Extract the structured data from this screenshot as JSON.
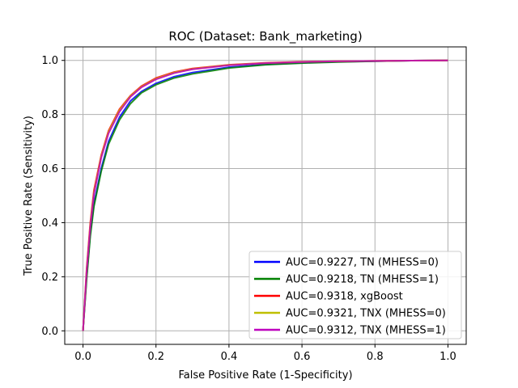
{
  "chart_data": {
    "type": "line",
    "title": "ROC (Dataset: Bank_marketing)",
    "xlabel": "False Positive Rate (1-Specificity)",
    "ylabel": "True Positive Rate (Sensitivity)",
    "xlim": [
      -0.05,
      1.05
    ],
    "ylim": [
      -0.05,
      1.05
    ],
    "x_ticks": [
      "0.0",
      "0.2",
      "0.4",
      "0.6",
      "0.8",
      "1.0"
    ],
    "y_ticks": [
      "0.0",
      "0.2",
      "0.4",
      "0.6",
      "0.8",
      "1.0"
    ],
    "grid": true,
    "legend_position": "lower-right",
    "series": [
      {
        "name": "AUC=0.9227, TN (MHESS=0)",
        "color": "#0000ff",
        "x": [
          0,
          0.01,
          0.02,
          0.03,
          0.05,
          0.07,
          0.1,
          0.13,
          0.16,
          0.2,
          0.25,
          0.3,
          0.4,
          0.5,
          0.6,
          0.7,
          0.8,
          0.9,
          1.0
        ],
        "y": [
          0,
          0.2,
          0.36,
          0.47,
          0.6,
          0.7,
          0.79,
          0.85,
          0.885,
          0.915,
          0.94,
          0.955,
          0.975,
          0.985,
          0.991,
          0.995,
          0.997,
          0.999,
          1.0
        ]
      },
      {
        "name": "AUC=0.9218, TN (MHESS=1)",
        "color": "#008000",
        "x": [
          0,
          0.01,
          0.02,
          0.03,
          0.05,
          0.07,
          0.1,
          0.13,
          0.16,
          0.2,
          0.25,
          0.3,
          0.4,
          0.5,
          0.6,
          0.7,
          0.8,
          0.9,
          1.0
        ],
        "y": [
          0,
          0.19,
          0.35,
          0.46,
          0.59,
          0.69,
          0.78,
          0.84,
          0.88,
          0.91,
          0.935,
          0.95,
          0.972,
          0.984,
          0.99,
          0.994,
          0.997,
          0.999,
          1.0
        ]
      },
      {
        "name": "AUC=0.9318, xgBoost",
        "color": "#ff0000",
        "x": [
          0,
          0.01,
          0.02,
          0.03,
          0.05,
          0.07,
          0.1,
          0.13,
          0.16,
          0.2,
          0.25,
          0.3,
          0.4,
          0.5,
          0.6,
          0.7,
          0.8,
          0.9,
          1.0
        ],
        "y": [
          0,
          0.23,
          0.4,
          0.52,
          0.65,
          0.74,
          0.82,
          0.87,
          0.905,
          0.935,
          0.957,
          0.97,
          0.984,
          0.991,
          0.995,
          0.997,
          0.998,
          0.999,
          1.0
        ]
      },
      {
        "name": "AUC=0.9321, TNX (MHESS=0)",
        "color": "#bfbf00",
        "x": [
          0,
          0.01,
          0.02,
          0.03,
          0.05,
          0.07,
          0.1,
          0.13,
          0.16,
          0.2,
          0.25,
          0.3,
          0.4,
          0.5,
          0.6,
          0.7,
          0.8,
          0.9,
          1.0
        ],
        "y": [
          0,
          0.22,
          0.39,
          0.51,
          0.645,
          0.735,
          0.815,
          0.868,
          0.902,
          0.932,
          0.955,
          0.968,
          0.983,
          0.99,
          0.994,
          0.997,
          0.998,
          0.999,
          1.0
        ]
      },
      {
        "name": "AUC=0.9312, TNX (MHESS=1)",
        "color": "#bf00bf",
        "x": [
          0,
          0.01,
          0.02,
          0.03,
          0.05,
          0.07,
          0.1,
          0.13,
          0.16,
          0.2,
          0.25,
          0.3,
          0.4,
          0.5,
          0.6,
          0.7,
          0.8,
          0.9,
          1.0
        ],
        "y": [
          0,
          0.22,
          0.385,
          0.505,
          0.64,
          0.73,
          0.81,
          0.865,
          0.9,
          0.93,
          0.953,
          0.967,
          0.982,
          0.99,
          0.994,
          0.997,
          0.998,
          0.999,
          1.0
        ]
      }
    ]
  }
}
